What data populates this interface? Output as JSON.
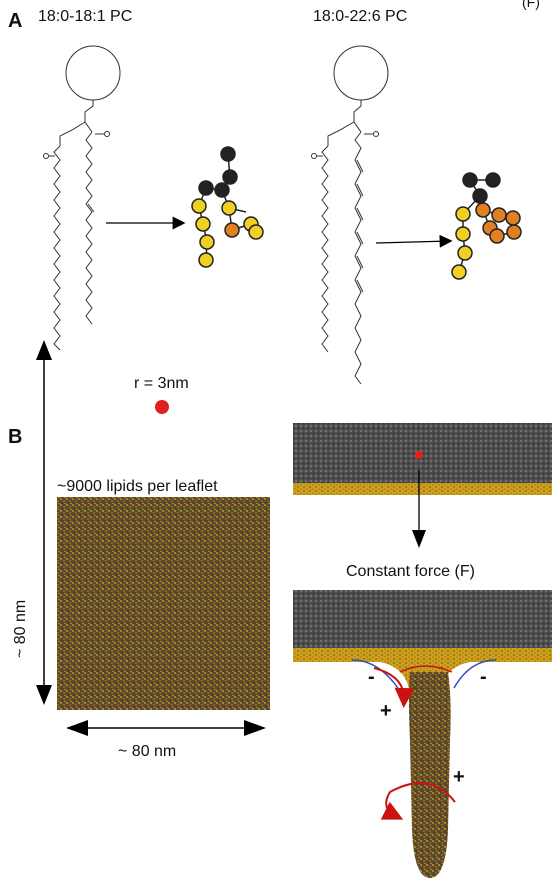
{
  "panel_a": {
    "letter": "A",
    "lipid_1": {
      "name": "18:0-18:1 PC"
    },
    "lipid_2": {
      "name": "18:0-22:6 PC"
    },
    "corner_mark": "(F)"
  },
  "panel_b": {
    "letter": "B",
    "lipids_per_leaflet": "~9000 lipids per leaflet",
    "radius_label": "r = 3nm",
    "height_label": "~ 80 nm",
    "width_label": "~ 80 nm",
    "force_label": "Constant force (F)",
    "sign_minus": "-",
    "sign_plus": "+"
  },
  "colors": {
    "tail_bead": "#f0d020",
    "head_bead": "#222222",
    "unsat_bead": "#e08020",
    "membrane_dark": "#5a4a30",
    "membrane_top": "#555555",
    "highlight": "#e02020",
    "curvature_arrow": "#cc1111",
    "curvature_line": "#3050c0"
  }
}
